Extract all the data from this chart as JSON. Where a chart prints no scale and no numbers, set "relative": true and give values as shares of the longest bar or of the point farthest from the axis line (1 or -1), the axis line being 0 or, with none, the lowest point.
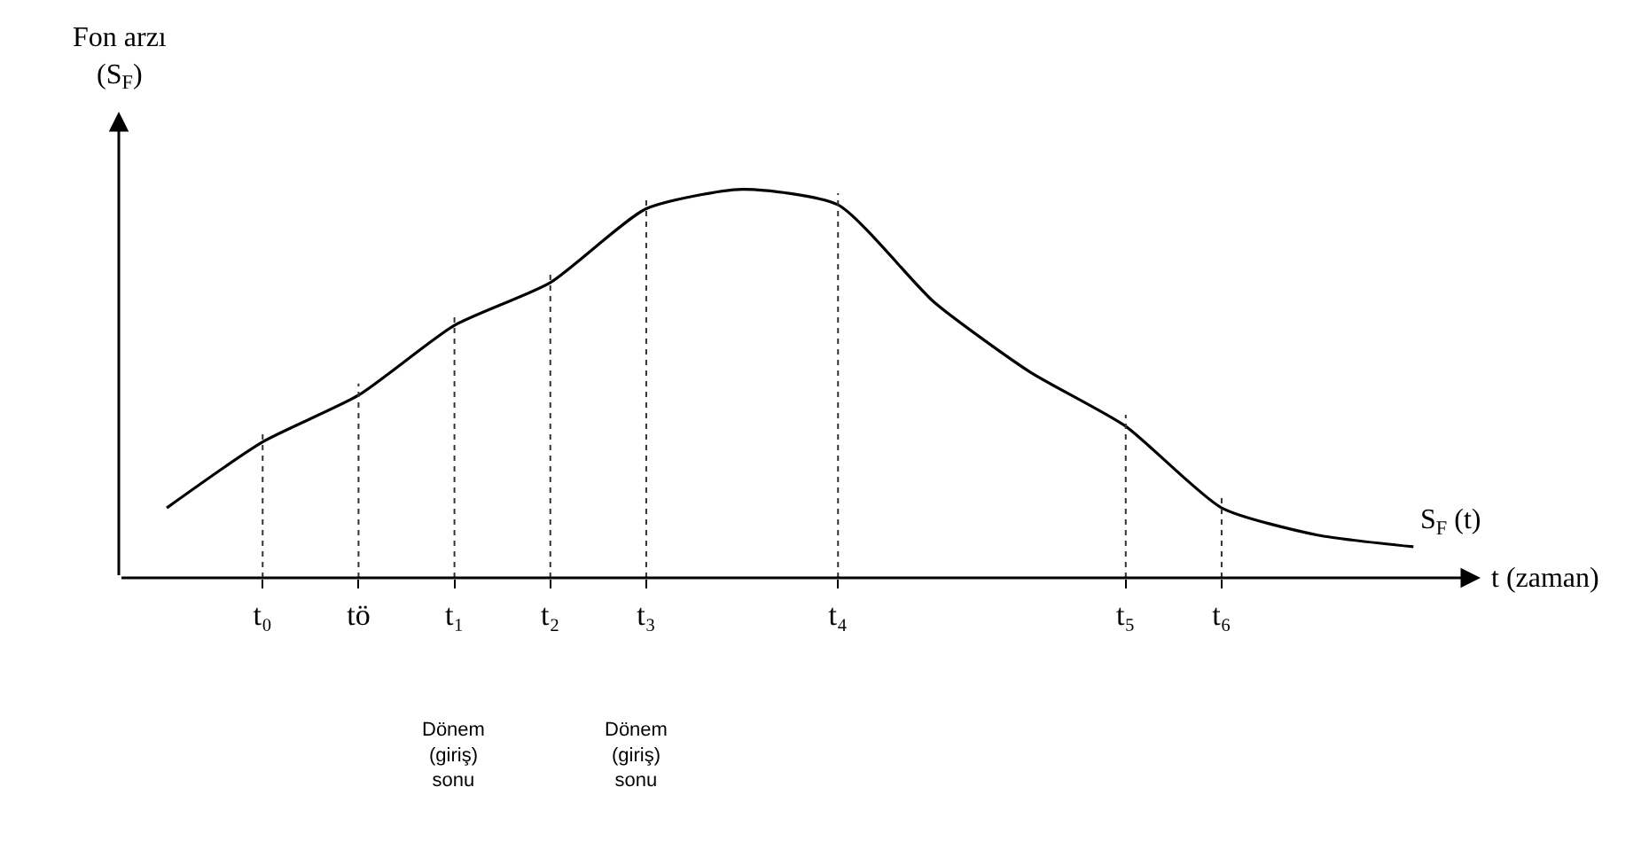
{
  "chart_data": {
    "type": "line",
    "relative": true,
    "ylabel": "Fon arzı\n(S$_{F}$)",
    "xlabel": "t (zaman)",
    "categories": [
      null,
      "t₀",
      "tö",
      "t₁",
      "t₂",
      "t₃",
      null,
      "t₄",
      null,
      null,
      "t₅",
      "t₆",
      null,
      null
    ],
    "series": [
      {
        "name": "S$_{F}$ (t)",
        "color": "#000000",
        "values": [
          0.18,
          0.35,
          0.47,
          0.65,
          0.76,
          0.95,
          1,
          0.96,
          0.71,
          0.53,
          0.39,
          0.18,
          0.11,
          0.08
        ]
      }
    ],
    "annotations": [
      "Dönem\n(giriş)\nsonu",
      "Dönem\n(giriş)\nsonu"
    ],
    "ref_lines": [
      {
        "axis": "x",
        "value": "t₀",
        "line_style": "dotted"
      },
      {
        "axis": "x",
        "value": "tö",
        "line_style": "dotted"
      },
      {
        "axis": "x",
        "value": "t₁",
        "line_style": "dotted"
      },
      {
        "axis": "x",
        "value": "t₂",
        "line_style": "dotted"
      },
      {
        "axis": "x",
        "value": "t₃",
        "line_style": "dotted"
      },
      {
        "axis": "x",
        "value": "t₄",
        "line_style": "dotted"
      },
      {
        "axis": "x",
        "value": "t₅",
        "line_style": "dotted"
      },
      {
        "axis": "x",
        "value": "t₆",
        "line_style": "dotted"
      }
    ],
    "legend": false,
    "marker": "none",
    "line_style": "solid"
  }
}
